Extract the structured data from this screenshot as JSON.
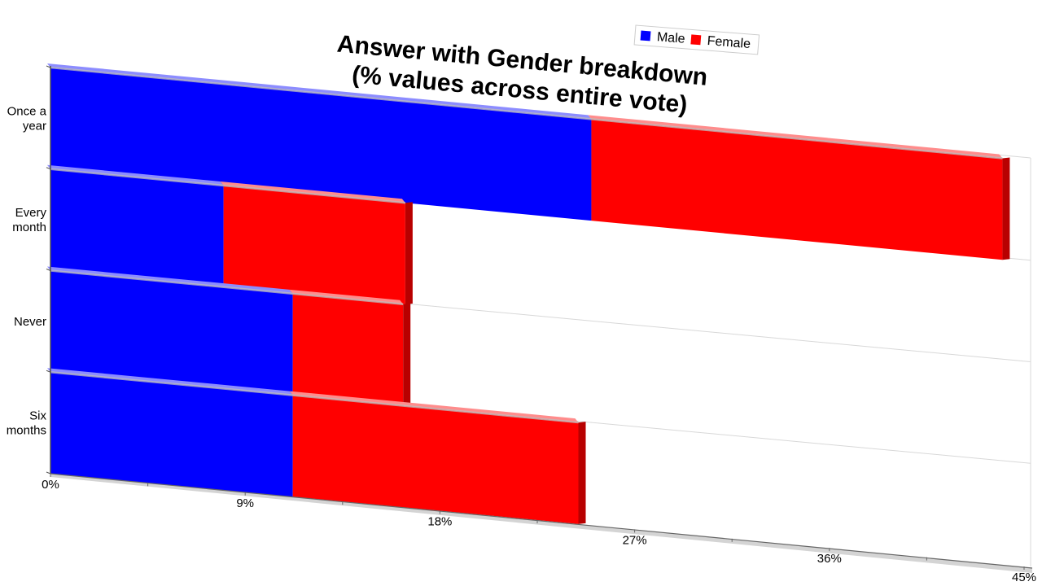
{
  "chart_data": {
    "type": "bar",
    "orientation": "horizontal",
    "stacked": true,
    "title": "Answer with Gender breakdown\n(% values across entire vote)",
    "categories": [
      "Once a year",
      "Every month",
      "Never",
      "Six months"
    ],
    "series": [
      {
        "name": "Male",
        "color": "#0000ff",
        "values": [
          25.0,
          8.0,
          11.2,
          11.2
        ]
      },
      {
        "name": "Female",
        "color": "#ff0000",
        "values": [
          19.0,
          8.4,
          5.1,
          13.2
        ]
      }
    ],
    "xlim": [
      0,
      45
    ],
    "xticks": [
      "0%",
      "9%",
      "18%",
      "27%",
      "36%",
      "45%"
    ],
    "xlabel": "",
    "ylabel": "",
    "legend": "top-right",
    "grid": false,
    "style": "3d-perspective"
  }
}
